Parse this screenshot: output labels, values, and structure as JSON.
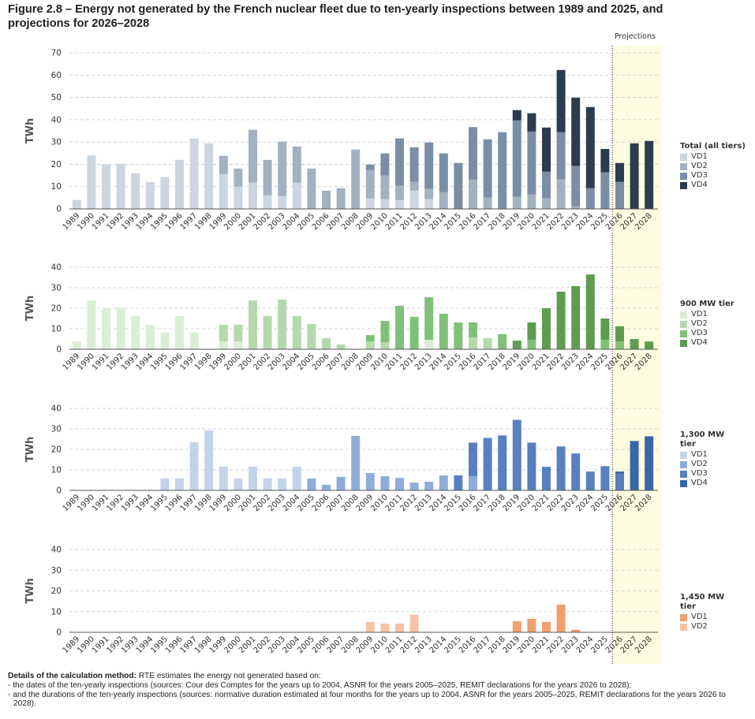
{
  "title": "Figure 2.8 – Energy not generated by the French nuclear fleet due to ten-yearly inspections between 1989 and 2025, and projections for 2026–2028",
  "projection_label": "Projections",
  "projection_background": "#fefce0",
  "footer": {
    "lead": "Details of the calculation method:",
    "lead_rest": " RTE estimates the energy not generated based on:",
    "line1": "- the dates of the ten-yearly inspections (sources: Cour des Comptes for the years up to 2004, ASNR for the years 2005–2025, REMIT declarations for the years 2026 to 2028);",
    "line2": "- and the durations of the ten-yearly inspections (sources: normative duration estimated at four months for the years up to 2004, ASNR for the years 2005–2025, REMIT declarations for the years 2026 to 2028)."
  },
  "chart_data": [
    {
      "type": "bar",
      "stacked": true,
      "legend_title": "Total (all tiers)",
      "ylabel": "TWh",
      "ylim": [
        0,
        70
      ],
      "yticks": [
        0,
        10,
        20,
        30,
        40,
        50,
        60,
        70
      ],
      "grid": true,
      "legend": "right",
      "categories": [
        "1989",
        "1990",
        "1991",
        "1992",
        "1993",
        "1994",
        "1995",
        "1996",
        "1997",
        "1998",
        "1999",
        "2000",
        "2001",
        "2002",
        "2003",
        "2004",
        "2005",
        "2006",
        "2007",
        "2008",
        "2009",
        "2010",
        "2011",
        "2012",
        "2013",
        "2014",
        "2015",
        "2016",
        "2017",
        "2018",
        "2019",
        "2020",
        "2021",
        "2022",
        "2023",
        "2024",
        "2025",
        "2026",
        "2027",
        "2028"
      ],
      "series": [
        {
          "name": "VD1",
          "color": "#cdd5de",
          "values": [
            4.0,
            24.1,
            19.9,
            20.3,
            16.0,
            12.1,
            14.3,
            22.0,
            31.6,
            29.4,
            15.7,
            10.0,
            11.8,
            6.1,
            5.8,
            11.8,
            0,
            0,
            0,
            0,
            4.7,
            4.4,
            4.0,
            8.2,
            4.4,
            0,
            0,
            0,
            0,
            0,
            0,
            0,
            0,
            0,
            0,
            0,
            0,
            0,
            0,
            0
          ]
        },
        {
          "name": "VD2",
          "color": "#a3b1c0",
          "values": [
            0,
            0,
            0,
            0,
            0,
            0,
            0,
            0,
            0,
            0,
            8.1,
            8.1,
            23.7,
            15.9,
            24.4,
            16.2,
            18.1,
            8.2,
            9.3,
            26.6,
            12.7,
            10.6,
            6.4,
            3.9,
            4.6,
            7.5,
            0,
            13.1,
            5.1,
            0,
            5.4,
            6.5,
            4.7,
            13.2,
            1.2,
            0,
            0,
            0,
            0,
            0
          ]
        },
        {
          "name": "VD3",
          "color": "#7a8ea6",
          "values": [
            0,
            0,
            0,
            0,
            0,
            0,
            0,
            0,
            0,
            0,
            0,
            0,
            0,
            0,
            0,
            0,
            0,
            0,
            0,
            0,
            2.5,
            9.9,
            21.2,
            15.6,
            20.8,
            17.4,
            20.6,
            23.6,
            26.1,
            34.4,
            34.3,
            28.2,
            12.0,
            21.2,
            18.0,
            9.3,
            16.4,
            12.1,
            0,
            0
          ]
        },
        {
          "name": "VD4",
          "color": "#2d3b4e",
          "values": [
            0,
            0,
            0,
            0,
            0,
            0,
            0,
            0,
            0,
            0,
            0,
            0,
            0,
            0,
            0,
            0,
            0,
            0,
            0,
            0,
            0,
            0,
            0,
            0,
            0,
            0,
            0,
            0,
            0,
            0,
            4.6,
            8.2,
            19.8,
            27.9,
            30.7,
            36.4,
            10.5,
            8.5,
            29.4,
            30.5
          ]
        }
      ]
    },
    {
      "type": "bar",
      "stacked": true,
      "legend_title": "900 MW tier",
      "ylabel": "TWh",
      "ylim": [
        0,
        40
      ],
      "yticks": [
        0,
        10,
        20,
        30,
        40
      ],
      "grid": true,
      "legend": "right",
      "categories": [
        "1989",
        "1990",
        "1991",
        "1992",
        "1993",
        "1994",
        "1995",
        "1996",
        "1997",
        "1998",
        "1999",
        "2000",
        "2001",
        "2002",
        "2003",
        "2004",
        "2005",
        "2006",
        "2007",
        "2008",
        "2009",
        "2010",
        "2011",
        "2012",
        "2013",
        "2014",
        "2015",
        "2016",
        "2017",
        "2018",
        "2019",
        "2020",
        "2021",
        "2022",
        "2023",
        "2024",
        "2025",
        "2026",
        "2027",
        "2028"
      ],
      "series": [
        {
          "name": "VD1",
          "color": "#dcedd7",
          "values": [
            3.8,
            23.8,
            20.0,
            20.4,
            16.2,
            11.9,
            8.2,
            16.2,
            8.2,
            0,
            3.8,
            3.8,
            0,
            0,
            0,
            0,
            0,
            0,
            0,
            0,
            0,
            0,
            0,
            0,
            4.6,
            0,
            0,
            0,
            0,
            0,
            0,
            0,
            0,
            0,
            0,
            0,
            0,
            0,
            0,
            0
          ]
        },
        {
          "name": "VD2",
          "color": "#b5d9ad",
          "values": [
            0,
            0,
            0,
            0,
            0,
            0,
            0,
            0,
            0,
            0,
            8.1,
            8.1,
            23.8,
            16.2,
            24.2,
            16.2,
            12.3,
            5.4,
            2.3,
            0,
            3.8,
            3.5,
            0,
            0,
            0,
            0,
            0,
            5.8,
            5.4,
            0,
            0,
            0,
            0,
            0,
            0,
            0,
            0,
            0,
            0,
            0
          ]
        },
        {
          "name": "VD3",
          "color": "#80c17a",
          "values": [
            0,
            0,
            0,
            0,
            0,
            0,
            0,
            0,
            0,
            0,
            0,
            0,
            0,
            0,
            0,
            0,
            0,
            0,
            0,
            0,
            3.1,
            10.3,
            21.2,
            15.8,
            20.8,
            17.3,
            13.1,
            7.3,
            0,
            7.3,
            0,
            4.6,
            0,
            0,
            0,
            0,
            4.6,
            3.8,
            0,
            0
          ]
        },
        {
          "name": "VD4",
          "color": "#5f9c51",
          "values": [
            0,
            0,
            0,
            0,
            0,
            0,
            0,
            0,
            0,
            0,
            0,
            0,
            0,
            0,
            0,
            0,
            0,
            0,
            0,
            0,
            0,
            0,
            0,
            0,
            0,
            0,
            0,
            0,
            0,
            0,
            4.2,
            8.5,
            20.0,
            28.1,
            30.8,
            36.5,
            10.4,
            7.4,
            5.0,
            3.8
          ]
        }
      ]
    },
    {
      "type": "bar",
      "stacked": true,
      "legend_title": "1,300 MW tier",
      "ylabel": "TWh",
      "ylim": [
        0,
        40
      ],
      "yticks": [
        0,
        10,
        20,
        30,
        40
      ],
      "grid": true,
      "legend": "right",
      "categories": [
        "1989",
        "1990",
        "1991",
        "1992",
        "1993",
        "1994",
        "1995",
        "1996",
        "1997",
        "1998",
        "1999",
        "2000",
        "2001",
        "2002",
        "2003",
        "2004",
        "2005",
        "2006",
        "2007",
        "2008",
        "2009",
        "2010",
        "2011",
        "2012",
        "2013",
        "2014",
        "2015",
        "2016",
        "2017",
        "2018",
        "2019",
        "2020",
        "2021",
        "2022",
        "2023",
        "2024",
        "2025",
        "2026",
        "2027",
        "2028"
      ],
      "series": [
        {
          "name": "VD1",
          "color": "#c3d3ea",
          "values": [
            0,
            0,
            0,
            0,
            0,
            0,
            5.8,
            5.8,
            23.5,
            29.3,
            11.6,
            5.8,
            11.6,
            5.8,
            5.8,
            11.6,
            0,
            0,
            0,
            0,
            0,
            0,
            0,
            0,
            0,
            0,
            0,
            0,
            0,
            0,
            0,
            0,
            0,
            0,
            0,
            0,
            0,
            0,
            0,
            0
          ]
        },
        {
          "name": "VD2",
          "color": "#8fadd8",
          "values": [
            0,
            0,
            0,
            0,
            0,
            0,
            0,
            0,
            0,
            0,
            0,
            0,
            0,
            0,
            0,
            0,
            5.8,
            2.7,
            6.6,
            26.6,
            8.5,
            6.9,
            6.1,
            3.8,
            4.2,
            7.3,
            0,
            6.9,
            0,
            0,
            0,
            0,
            0,
            0,
            0,
            0,
            0,
            0,
            0,
            0
          ]
        },
        {
          "name": "VD3",
          "color": "#5880be",
          "values": [
            0,
            0,
            0,
            0,
            0,
            0,
            0,
            0,
            0,
            0,
            0,
            0,
            0,
            0,
            0,
            0,
            0,
            0,
            0,
            0,
            0,
            0,
            0,
            0,
            0,
            0,
            7.3,
            16.4,
            25.6,
            26.8,
            34.4,
            23.3,
            11.5,
            21.4,
            18.0,
            9.2,
            11.8,
            8.0,
            0,
            0
          ]
        },
        {
          "name": "VD4",
          "color": "#3a65a8",
          "values": [
            0,
            0,
            0,
            0,
            0,
            0,
            0,
            0,
            0,
            0,
            0,
            0,
            0,
            0,
            0,
            0,
            0,
            0,
            0,
            0,
            0,
            0,
            0,
            0,
            0,
            0,
            0,
            0,
            0,
            0,
            0,
            0,
            0,
            0,
            0,
            0,
            0,
            1.2,
            24.1,
            26.4
          ]
        }
      ]
    },
    {
      "type": "bar",
      "stacked": true,
      "legend_title": "1,450 MW tier",
      "ylabel": "TWh",
      "ylim": [
        0,
        40
      ],
      "yticks": [
        0,
        10,
        20,
        30,
        40
      ],
      "grid": true,
      "legend": "right",
      "categories": [
        "1989",
        "1990",
        "1991",
        "1992",
        "1993",
        "1994",
        "1995",
        "1996",
        "1997",
        "1998",
        "1999",
        "2000",
        "2001",
        "2002",
        "2003",
        "2004",
        "2005",
        "2006",
        "2007",
        "2008",
        "2009",
        "2010",
        "2011",
        "2012",
        "2013",
        "2014",
        "2015",
        "2016",
        "2017",
        "2018",
        "2019",
        "2020",
        "2021",
        "2022",
        "2023",
        "2024",
        "2025",
        "2026",
        "2027",
        "2028"
      ],
      "series": [
        {
          "name": "VD1",
          "color": "#f0a06e",
          "values": [
            0,
            0,
            0,
            0,
            0,
            0,
            0,
            0,
            0,
            0,
            0,
            0,
            0,
            0,
            0,
            0,
            0,
            0,
            0,
            0,
            0,
            0,
            0,
            0,
            0,
            0,
            0,
            0,
            0,
            0,
            5.4,
            6.5,
            5.0,
            13.4,
            1.2,
            0,
            0,
            0,
            0,
            0
          ]
        },
        {
          "name": "VD2",
          "color": "#f6c4a5",
          "values": [
            0,
            0,
            0,
            0,
            0,
            0,
            0,
            0,
            0,
            0,
            0,
            0,
            0,
            0,
            0,
            0,
            0,
            0,
            0,
            0,
            5.0,
            4.2,
            4.2,
            8.4,
            0,
            0,
            0,
            0,
            0,
            0,
            0,
            0,
            0,
            0,
            0,
            0,
            0,
            0,
            0,
            0
          ]
        }
      ]
    }
  ]
}
